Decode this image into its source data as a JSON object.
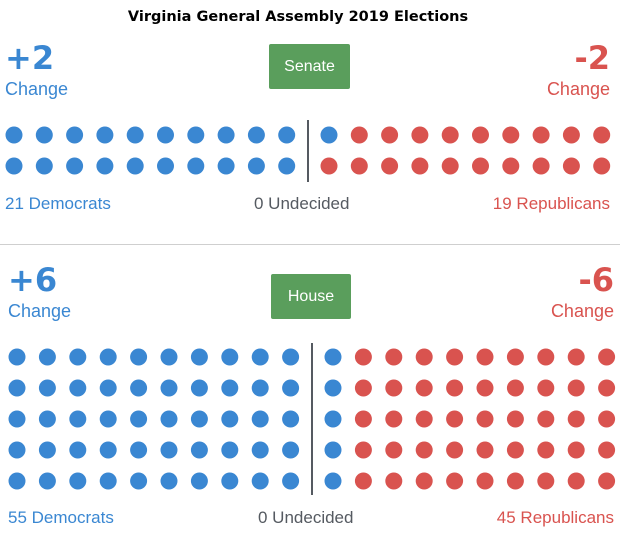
{
  "title": "Virginia General Assembly 2019 Elections",
  "colors": {
    "democrat": "#3a87d2",
    "republican": "#d9534f",
    "button": "#5a9e5c",
    "undecided": "#555a61"
  },
  "senate": {
    "button_label": "Senate",
    "dem_change": "+2",
    "rep_change": "-2",
    "change_label": "Change",
    "dem_count_label": "21 Democrats",
    "undecided_label": "0 Undecided",
    "rep_count_label": "19 Republicans",
    "democrats": 21,
    "undecided": 0,
    "republicans": 19,
    "rows": 2,
    "columns_per_side": 10
  },
  "house": {
    "button_label": "House",
    "dem_change": "+6",
    "rep_change": "-6",
    "change_label": "Change",
    "dem_count_label": "55 Democrats",
    "undecided_label": "0 Undecided",
    "rep_count_label": "45 Republicans",
    "democrats": 55,
    "undecided": 0,
    "republicans": 45,
    "rows": 5,
    "columns_per_side": 10
  }
}
